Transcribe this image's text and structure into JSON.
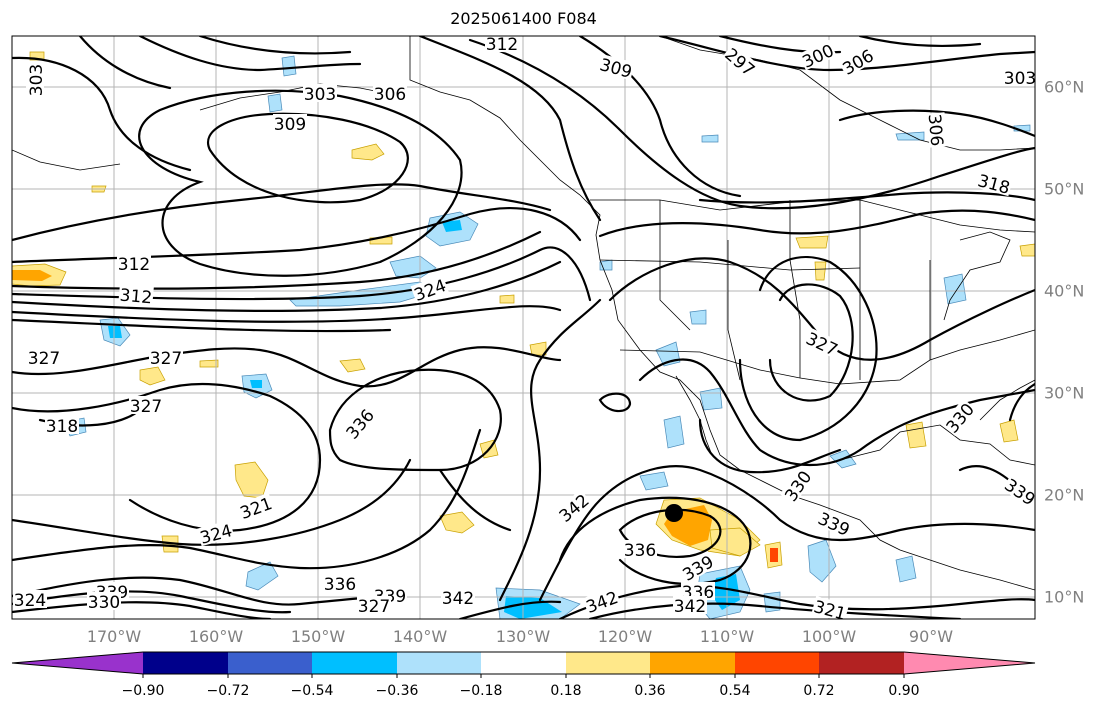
{
  "title": "2025061400 F084",
  "lon_labels": [
    "170°W",
    "160°W",
    "150°W",
    "140°W",
    "130°W",
    "120°W",
    "110°W",
    "100°W",
    "90°W"
  ],
  "lat_labels": [
    "60°N",
    "50°N",
    "40°N",
    "30°N",
    "20°N",
    "10°N"
  ],
  "colorbar": {
    "ticks": [
      "−0.90",
      "−0.72",
      "−0.54",
      "−0.36",
      "−0.18",
      "0.18",
      "0.36",
      "0.54",
      "0.72",
      "0.90"
    ],
    "colors": [
      "#9932cc",
      "#00008b",
      "#3a5fcd",
      "#00bfff",
      "#aee1fb",
      "#ffffff",
      "#ffe88a",
      "#ffa500",
      "#ff4500",
      "#b22222",
      "#ff8ab0"
    ]
  },
  "contour_labels": [
    "312",
    "309",
    "303",
    "297",
    "300",
    "306",
    "303",
    "309",
    "306",
    "303",
    "306",
    "318",
    "312",
    "312",
    "312",
    "324",
    "327",
    "327",
    "327",
    "318",
    "336",
    "327",
    "330",
    "342",
    "330",
    "339",
    "339",
    "336",
    "339",
    "336",
    "342",
    "321",
    "324",
    "321",
    "324",
    "336",
    "339",
    "330",
    "339",
    "327",
    "342",
    "342"
  ],
  "colors": {
    "contour": "#000000",
    "grid": "#b4b4b4",
    "border": "#000000"
  }
}
